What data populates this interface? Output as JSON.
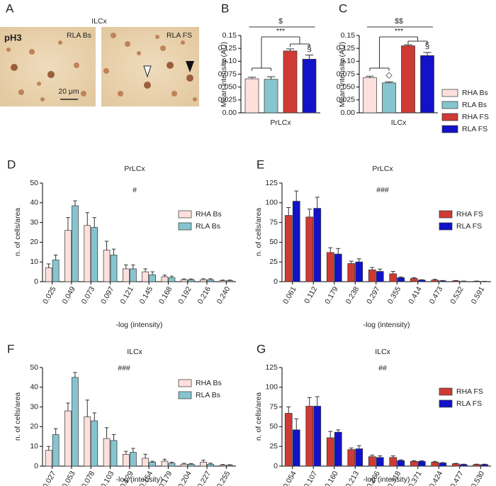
{
  "panel_a": {
    "panel": "A",
    "title": "ILCx",
    "stain": "pH3",
    "left_label": "RLA Bs",
    "right_label": "RLA FS",
    "scale_bar": "20 μm"
  },
  "chart_data": [
    {
      "panel": "B",
      "type": "bar",
      "ylabel": "Mean intensity (AU)",
      "categories": [
        "PrLCx"
      ],
      "ylim": [
        0,
        0.15
      ],
      "yticks": [
        {
          "value": 0,
          "label": "0.00"
        },
        0.025,
        {
          "value": 0.05,
          "label": "0.050"
        },
        0.075,
        {
          "value": 0.1,
          "label": "0.10"
        },
        0.125,
        0.15
      ],
      "annotations": [
        "$",
        "***",
        "§"
      ],
      "series": [
        {
          "color": "#fde0dc",
          "values": [
            0.066
          ],
          "errors": [
            0.003
          ]
        },
        {
          "color": "#86c5cf",
          "values": [
            0.065
          ],
          "errors": [
            0.005
          ]
        },
        {
          "color": "#cf3a34",
          "values": [
            0.12
          ],
          "errors": [
            0.004
          ]
        },
        {
          "color": "#1212c8",
          "values": [
            0.104
          ],
          "errors": [
            0.008
          ]
        }
      ]
    },
    {
      "panel": "C",
      "type": "bar",
      "ylabel": "Mean intensity (AU)",
      "categories": [
        "ILCx"
      ],
      "ylim": [
        0,
        0.15
      ],
      "yticks": [
        {
          "value": 0,
          "label": "0.00"
        },
        0.025,
        {
          "value": 0.05,
          "label": "0.050"
        },
        0.075,
        {
          "value": 0.1,
          "label": "0.10"
        },
        0.125,
        0.15
      ],
      "annotations": [
        "$$",
        "***",
        "◇",
        "§"
      ],
      "series": [
        {
          "name": "RHA Bs",
          "color": "#fde0dc",
          "values": [
            0.068
          ],
          "errors": [
            0.003
          ]
        },
        {
          "name": "RLA Bs",
          "color": "#86c5cf",
          "values": [
            0.058
          ],
          "errors": [
            0.002
          ]
        },
        {
          "name": "RHA FS",
          "color": "#cf3a34",
          "values": [
            0.13
          ],
          "errors": [
            0.002
          ]
        },
        {
          "name": "RLA FS",
          "color": "#1212c8",
          "values": [
            0.111
          ],
          "errors": [
            0.006
          ]
        }
      ]
    },
    {
      "panel": "D",
      "type": "bar",
      "title": "PrLCx",
      "annotations": [
        "#"
      ],
      "xlabel": "-log (intensity)",
      "ylabel": "n. of cells/area",
      "categories": [
        "0.025",
        "0.049",
        "0.073",
        "0.097",
        "0.121",
        "0.145",
        "0.168",
        "0.192",
        "0.216",
        "0.240"
      ],
      "ylim": [
        0,
        50
      ],
      "yticks": [
        0,
        10,
        20,
        30,
        40,
        50
      ],
      "series": [
        {
          "name": "RHA Bs",
          "color": "#fde0dc",
          "values": [
            7,
            26,
            28.5,
            16,
            6.5,
            5,
            2.5,
            1,
            1,
            0.5
          ],
          "errors": [
            2,
            6.5,
            6.5,
            4.5,
            2,
            1.5,
            0.8,
            0.4,
            0.5,
            0.3
          ]
        },
        {
          "name": "RLA Bs",
          "color": "#86c5cf",
          "values": [
            11,
            38.5,
            27.5,
            13.5,
            6.5,
            3.5,
            2,
            1,
            1,
            0.5
          ],
          "errors": [
            2.5,
            2.5,
            5,
            3,
            2,
            1.5,
            0.8,
            0.4,
            0.5,
            0.3
          ]
        }
      ]
    },
    {
      "panel": "E",
      "type": "bar",
      "title": "PrLCx",
      "annotations": [
        "###"
      ],
      "xlabel": "-log (intensity)",
      "ylabel": "n. of cells/area",
      "categories": [
        "0.061",
        "0.112",
        "0.179",
        "0.238",
        "0.297",
        "0.355",
        "0.414",
        "0.473",
        "0.532",
        "0.591"
      ],
      "ylim": [
        0,
        125
      ],
      "yticks": [
        0,
        25,
        50,
        75,
        100,
        125
      ],
      "series": [
        {
          "name": "RHA FS",
          "color": "#cf3a34",
          "values": [
            84,
            82,
            37,
            23,
            15,
            10,
            4,
            2,
            1,
            0.5
          ],
          "errors": [
            10,
            10,
            6,
            3,
            3,
            3,
            1,
            1,
            0.5,
            0.3
          ]
        },
        {
          "name": "RLA FS",
          "color": "#1212c8",
          "values": [
            102,
            93,
            35,
            25,
            13,
            5,
            2,
            1,
            0.5,
            0.3
          ],
          "errors": [
            13,
            14,
            7,
            4,
            3,
            1,
            0.5,
            0.5,
            0.3,
            0.2
          ]
        }
      ]
    },
    {
      "panel": "F",
      "type": "bar",
      "title": "ILCx",
      "annotations": [
        "###"
      ],
      "xlabel": "-log (intensity)",
      "ylabel": "n. of cells/area",
      "categories": [
        "0.027",
        "0.053",
        "0.078",
        "0.103",
        "0.129",
        "0.154",
        "0.179",
        "0.204",
        "0.227",
        "0.255"
      ],
      "ylim": [
        0,
        50
      ],
      "yticks": [
        0,
        10,
        20,
        30,
        40,
        50
      ],
      "series": [
        {
          "name": "RHA Bs",
          "color": "#fde0dc",
          "values": [
            8,
            28,
            25,
            14,
            6,
            4,
            2.5,
            1,
            2,
            0.5
          ],
          "errors": [
            2,
            4,
            8.5,
            5.5,
            1.5,
            2,
            1,
            0.4,
            1,
            0.3
          ]
        },
        {
          "name": "RLA Bs",
          "color": "#86c5cf",
          "values": [
            16,
            45,
            23,
            13,
            7,
            2,
            1.5,
            1,
            1,
            0.5
          ],
          "errors": [
            3,
            2.5,
            4,
            3,
            2,
            0.5,
            0.5,
            0.3,
            0.5,
            0.2
          ]
        }
      ]
    },
    {
      "panel": "G",
      "type": "bar",
      "title": "ILCx",
      "annotations": [
        "##"
      ],
      "xlabel": "-log (intensity)",
      "ylabel": "n. of cells/area",
      "categories": [
        "0.054",
        "0.107",
        "0.160",
        "0.213",
        "0.266",
        "0.318",
        "0.371",
        "0.424",
        "0.477",
        "0.530"
      ],
      "ylim": [
        0,
        125
      ],
      "yticks": [
        0,
        25,
        50,
        75,
        100,
        125
      ],
      "series": [
        {
          "name": "RHA FS",
          "color": "#cf3a34",
          "values": [
            67,
            76,
            36,
            21,
            12,
            11,
            6,
            5,
            3,
            2
          ],
          "errors": [
            8,
            11,
            8,
            2,
            2,
            2,
            1,
            1,
            0.5,
            0.5
          ]
        },
        {
          "name": "RLA FS",
          "color": "#1212c8",
          "values": [
            46,
            76,
            43,
            22,
            11,
            7,
            6,
            4,
            2,
            2
          ],
          "errors": [
            14,
            12,
            3,
            4,
            2,
            1,
            1,
            0.5,
            0.5,
            0.5
          ]
        }
      ]
    }
  ]
}
